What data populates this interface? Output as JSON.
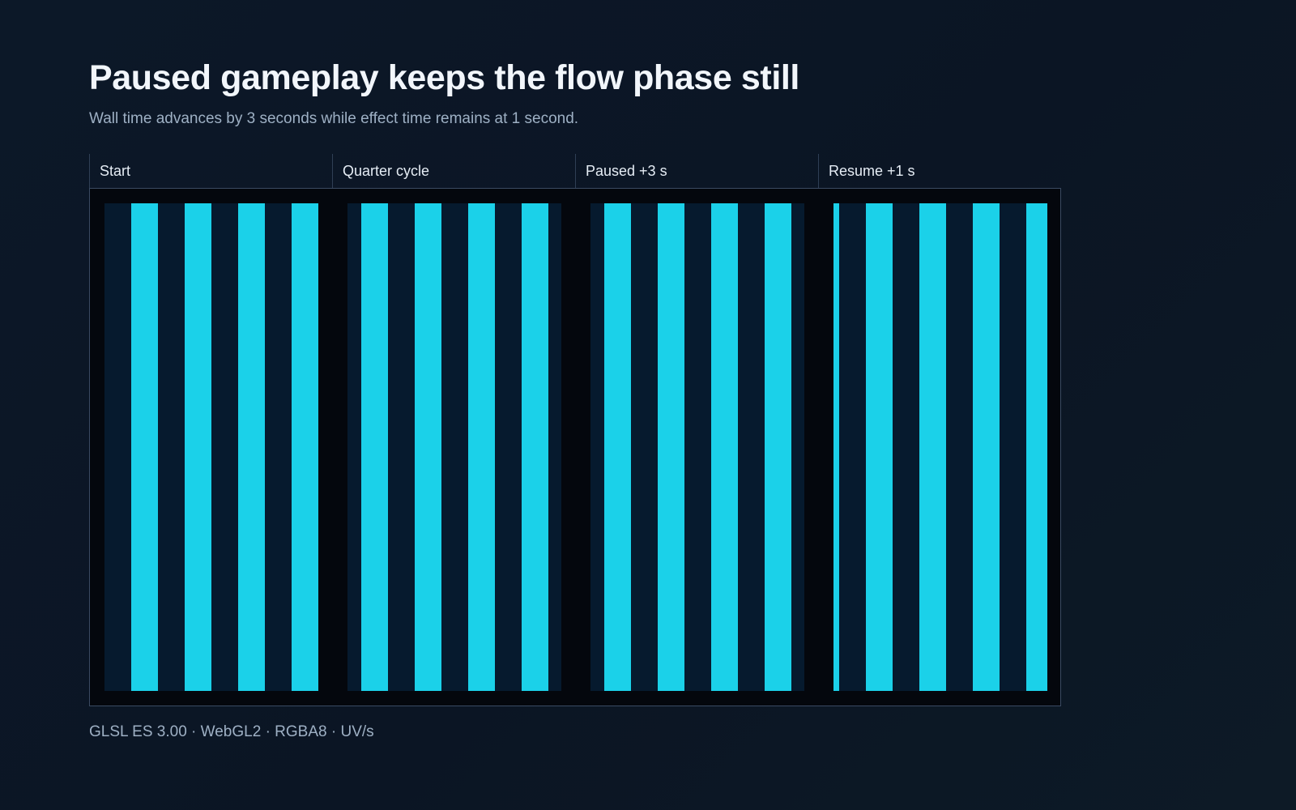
{
  "header": {
    "title": "Paused gameplay keeps the flow phase still",
    "subtitle": "Wall time advances by 3 seconds while effect time remains at 1 second."
  },
  "panels": [
    {
      "label": "Start",
      "phase": 0.5
    },
    {
      "label": "Quarter cycle",
      "phase": 0.25
    },
    {
      "label": "Paused +3 s",
      "phase": 0.25
    },
    {
      "label": "Resume +1 s",
      "phase": 0.6
    }
  ],
  "footer": "GLSL ES 3.00 · WebGL2 · RGBA8 · UV/s",
  "colors": {
    "stripe": "#1bd1e9",
    "stripe_background": "#061a2e",
    "gutter": "#04070d"
  }
}
